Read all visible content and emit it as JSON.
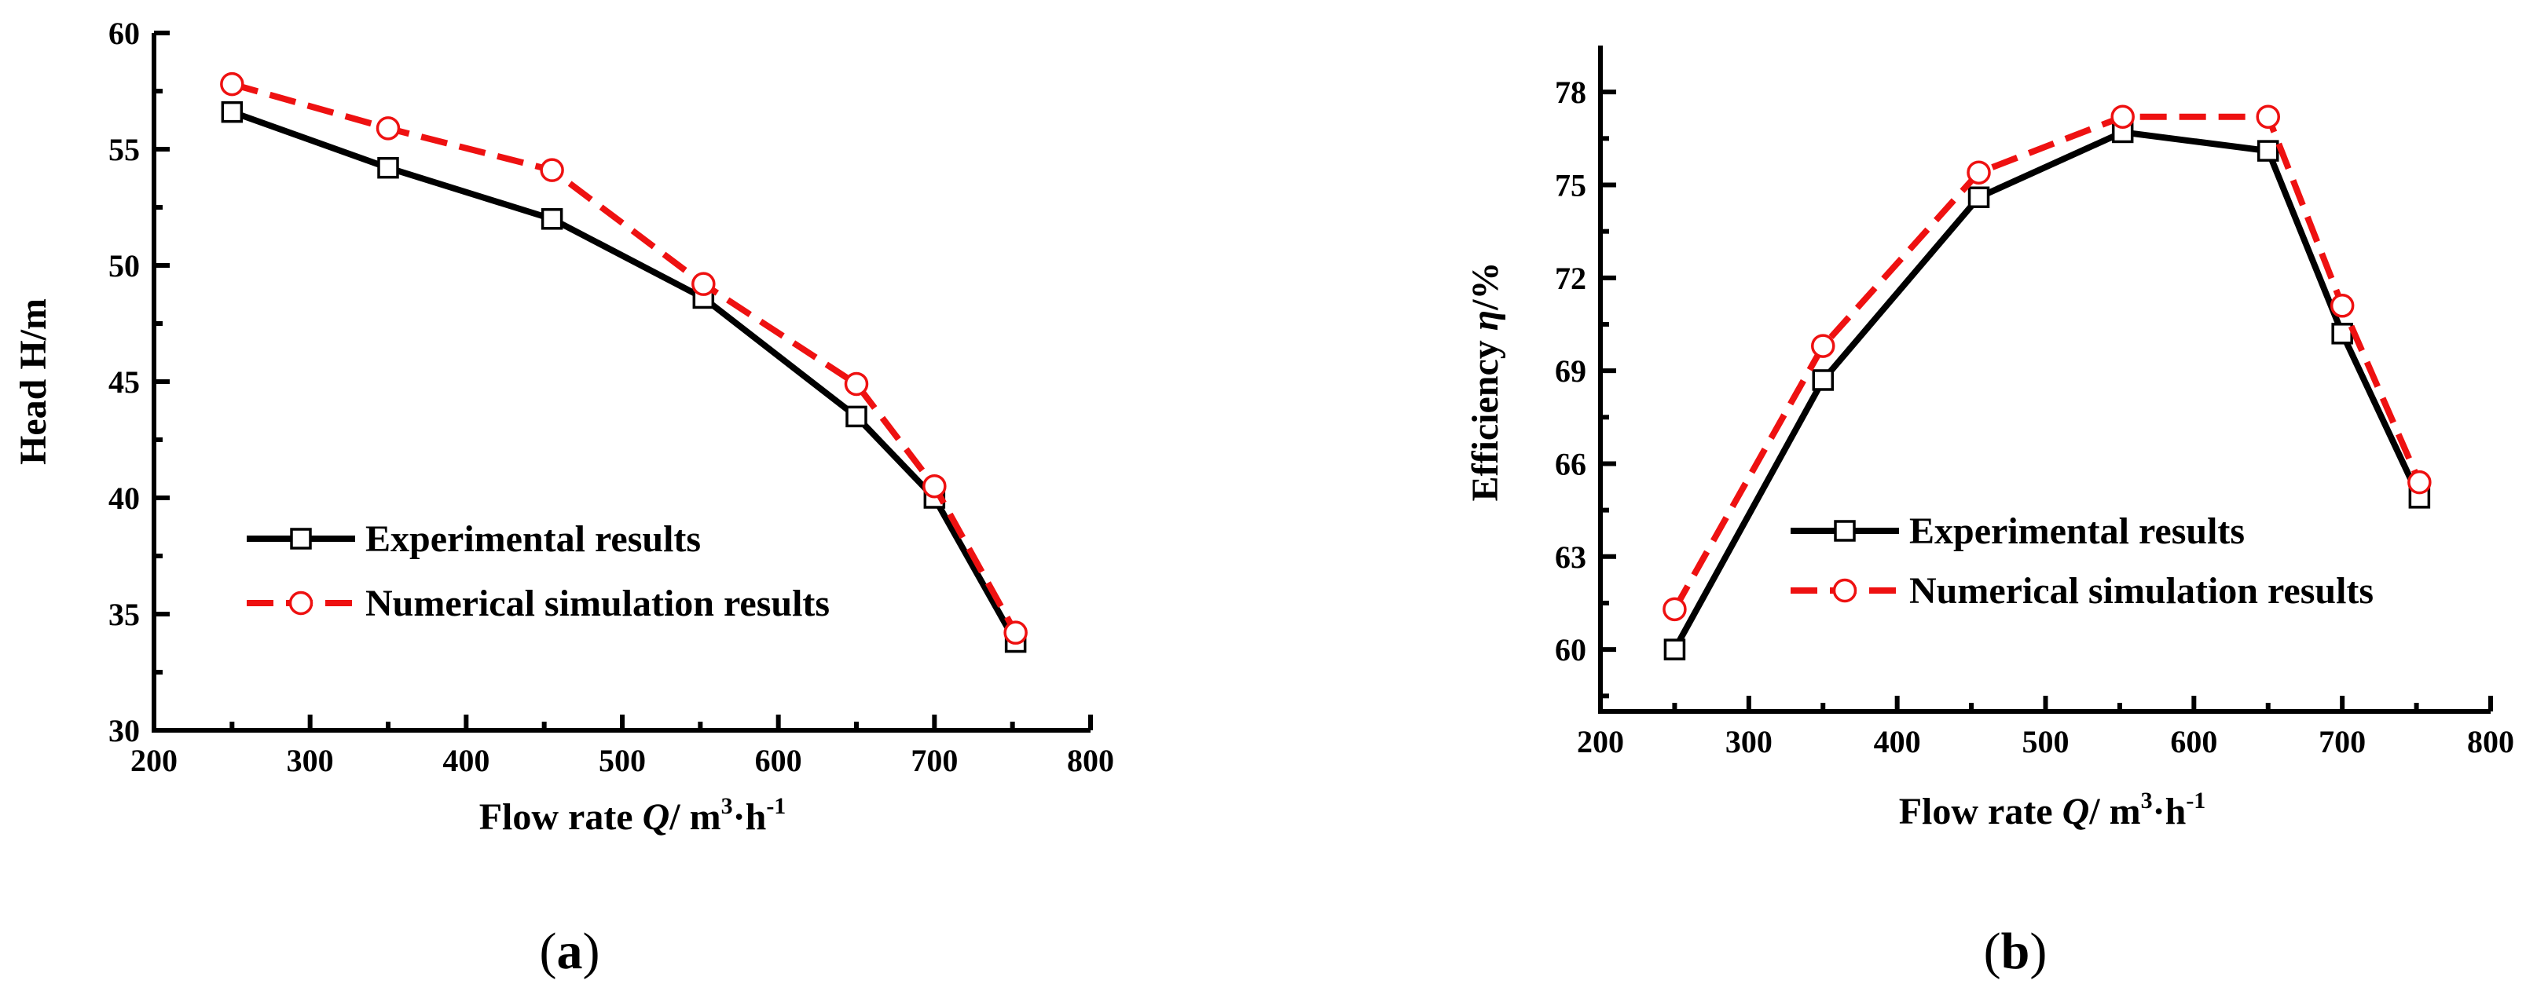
{
  "colors": {
    "experimental": "#000000",
    "numerical": "#ee1111",
    "axis": "#000000"
  },
  "chart_data": [
    {
      "type": "line",
      "panel_label": "a",
      "xlabel": {
        "prefix": "Flow rate ",
        "var": "Q",
        "sep": "/ m",
        "sup1": "3",
        "mid": "·h",
        "sup2": "-1"
      },
      "ylabel": "Head H/m",
      "xlim": [
        200,
        800
      ],
      "ylim": [
        30,
        60
      ],
      "xticks": [
        200,
        300,
        400,
        500,
        600,
        700,
        800
      ],
      "yticks": [
        30,
        35,
        40,
        45,
        50,
        55,
        60
      ],
      "legend_position": "bottom-center",
      "series": [
        {
          "name": "Experimental results",
          "marker": "square",
          "style": "solid",
          "x": [
            250,
            350,
            455,
            552,
            650,
            700,
            752
          ],
          "y": [
            56.6,
            54.2,
            52.0,
            48.6,
            43.5,
            40.0,
            33.8
          ]
        },
        {
          "name": "Numerical simulation results",
          "marker": "circle",
          "style": "dashed",
          "x": [
            250,
            350,
            455,
            552,
            650,
            700,
            752
          ],
          "y": [
            57.8,
            55.9,
            54.1,
            49.2,
            44.9,
            40.5,
            34.2
          ]
        }
      ]
    },
    {
      "type": "line",
      "panel_label": "b",
      "xlabel": {
        "prefix": "Flow rate ",
        "var": "Q",
        "sep": "/ m",
        "sup1": "3",
        "mid": "·h",
        "sup2": "-1"
      },
      "ylabel": {
        "prefix": "Efficiency ",
        "var": "η",
        "suffix": "/%"
      },
      "xlim": [
        200,
        800
      ],
      "ylim": [
        58,
        79.5
      ],
      "xticks": [
        200,
        300,
        400,
        500,
        600,
        700,
        800
      ],
      "yticks": [
        60,
        63,
        66,
        69,
        72,
        75,
        78
      ],
      "legend_position": "bottom-center",
      "series": [
        {
          "name": "Experimental results",
          "marker": "square",
          "style": "solid",
          "x": [
            250,
            350,
            455,
            552,
            650,
            700,
            752
          ],
          "y": [
            60.0,
            68.7,
            74.6,
            76.7,
            76.1,
            70.2,
            64.9
          ]
        },
        {
          "name": "Numerical simulation results",
          "marker": "circle",
          "style": "dashed",
          "x": [
            250,
            350,
            455,
            552,
            650,
            700,
            752
          ],
          "y": [
            61.3,
            69.8,
            75.4,
            77.2,
            77.2,
            71.1,
            65.4
          ]
        }
      ]
    }
  ]
}
